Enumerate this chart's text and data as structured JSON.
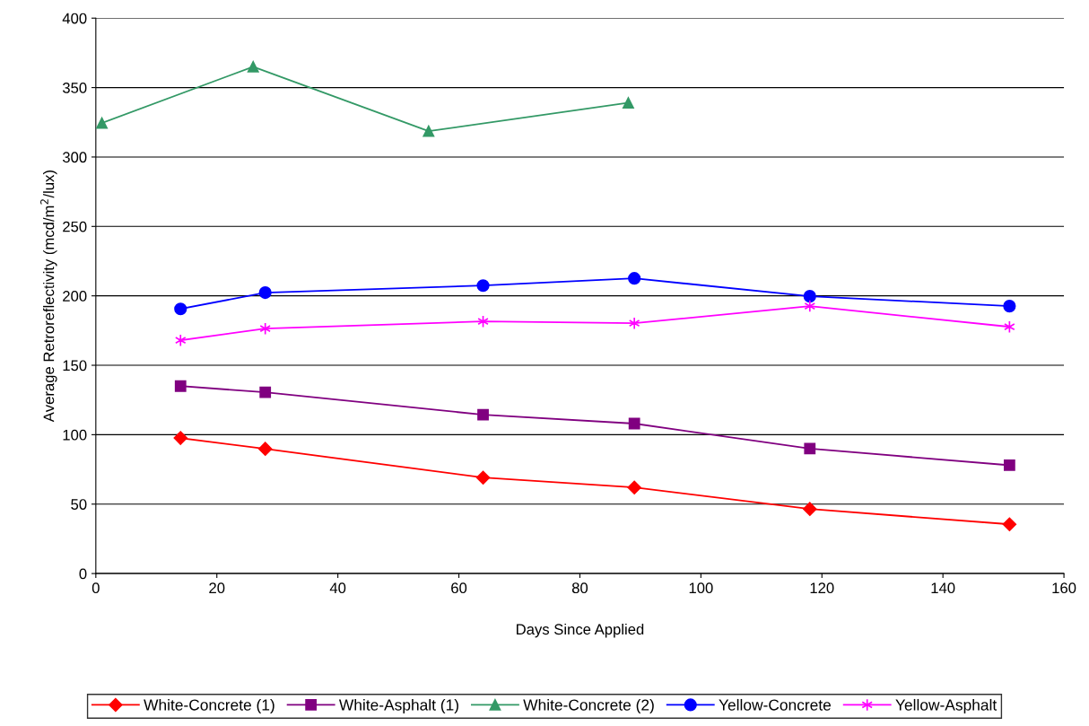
{
  "chart_data": {
    "type": "line",
    "xlabel": "Days Since Applied",
    "ylabel": "Average Retroreflectivity (mcd/m$^{2}$/lux)",
    "xlim": [
      0,
      160
    ],
    "xticks": [
      0,
      20,
      40,
      60,
      80,
      100,
      120,
      140,
      160
    ],
    "ylim": [
      0,
      400
    ],
    "yticks": [
      0,
      50,
      100,
      150,
      200,
      250,
      300,
      350,
      400
    ],
    "grid": "y",
    "legend": "bottom",
    "series": [
      {
        "name": "White-Concrete (1)",
        "color": "#ff0000",
        "marker": "diamond",
        "x": [
          14,
          28,
          64,
          89,
          118,
          151
        ],
        "values": [
          97.6,
          89.8,
          69.1,
          62,
          46.5,
          35.5
        ]
      },
      {
        "name": "White-Asphalt (1)",
        "color": "#800080",
        "marker": "square",
        "x": [
          14,
          28,
          64,
          89,
          118,
          151
        ],
        "values": [
          135,
          130.5,
          114.4,
          108,
          90,
          78
        ]
      },
      {
        "name": "White-Concrete (2)",
        "color": "#339966",
        "marker": "triangle",
        "x": [
          1,
          26,
          55,
          88
        ],
        "values": [
          324.4,
          365,
          318.6,
          339
        ]
      },
      {
        "name": "Yellow-Concrete",
        "color": "#0000ff",
        "marker": "circle",
        "x": [
          14,
          28,
          64,
          89,
          118,
          151
        ],
        "values": [
          190.6,
          202.3,
          207.4,
          212.6,
          199.7,
          192.6
        ]
      },
      {
        "name": "Yellow-Asphalt",
        "color": "#ff00ff",
        "marker": "cross",
        "x": [
          14,
          28,
          64,
          89,
          118,
          151
        ],
        "values": [
          168,
          176.4,
          181.6,
          180.3,
          192.6,
          177.7
        ]
      }
    ]
  }
}
